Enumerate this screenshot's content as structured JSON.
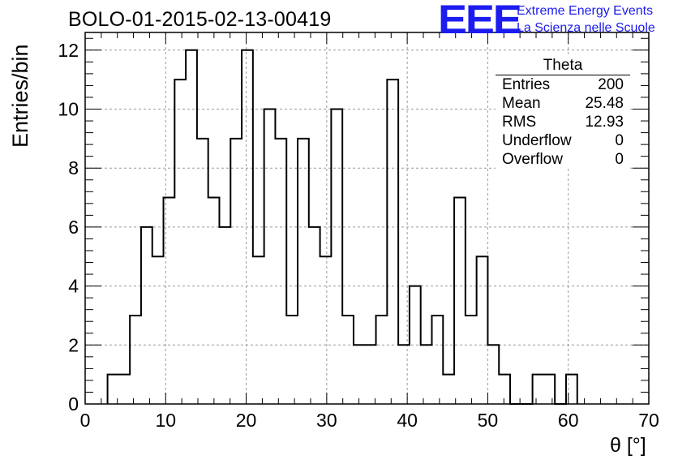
{
  "header": {
    "run_id": "BOLO-01-2015-02-13-00419",
    "logo": "EEE",
    "org_line1": "Extreme Energy Events",
    "org_line2": "La Scienza nelle Scuole"
  },
  "stats_box": {
    "title": "Theta",
    "rows": [
      {
        "label": "Entries",
        "value": "200"
      },
      {
        "label": "Mean",
        "value": "25.48"
      },
      {
        "label": "RMS",
        "value": "12.93"
      },
      {
        "label": "Underflow",
        "value": "0"
      },
      {
        "label": "Overflow",
        "value": "0"
      }
    ]
  },
  "colors": {
    "line": "#000000",
    "grid": "#9a9a9a",
    "logo": "#1c1cf0"
  },
  "chart_data": {
    "type": "bar",
    "style": "step-histogram",
    "xlabel": "θ [°]",
    "ylabel": "Entries/bin",
    "xlim": [
      0,
      70
    ],
    "ylim": [
      0,
      12.6
    ],
    "xticks": [
      0,
      10,
      20,
      30,
      40,
      50,
      60,
      70
    ],
    "yticks": [
      0,
      2,
      4,
      6,
      8,
      10,
      12
    ],
    "grid": true,
    "bin_width": 1.3889,
    "bin_start": 2.7778,
    "values": [
      1,
      1,
      3,
      6,
      5,
      7,
      11,
      12,
      9,
      7,
      6,
      9,
      12,
      5,
      10,
      9,
      3,
      9,
      6,
      5,
      10,
      3,
      2,
      2,
      3,
      11,
      2,
      4,
      2,
      3,
      1,
      7,
      3,
      5,
      2,
      1,
      0,
      0,
      1,
      1,
      0,
      1
    ]
  }
}
